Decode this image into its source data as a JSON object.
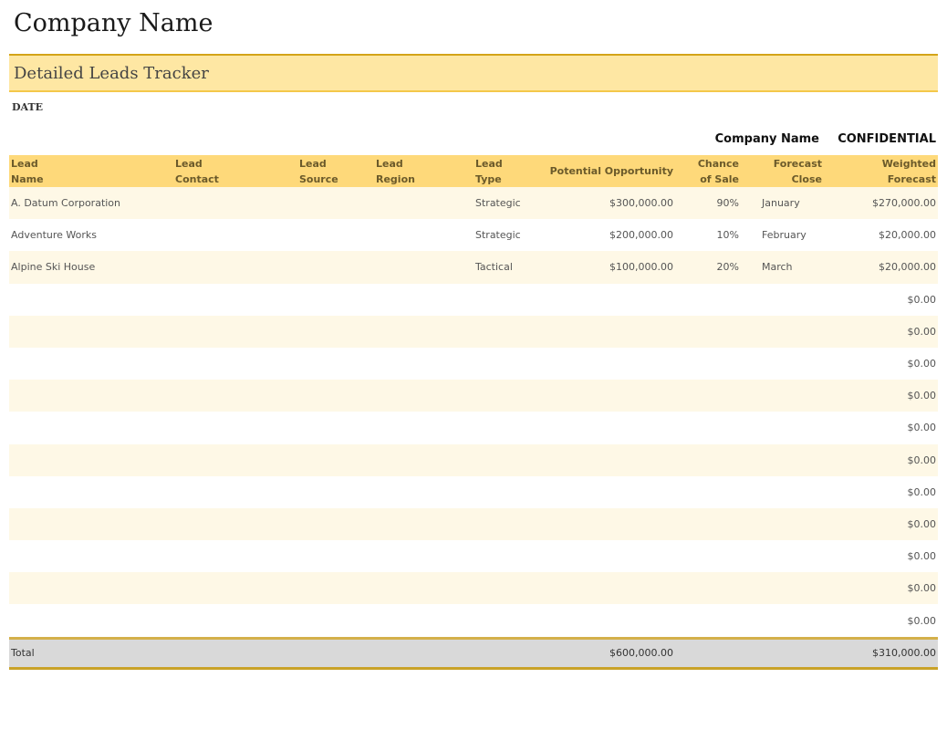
{
  "header": {
    "company": "Company Name",
    "title": "Detailed Leads Tracker",
    "date_label": "DATE",
    "company_right": "Company Name",
    "confidential": "CONFIDENTIAL"
  },
  "columns": [
    [
      "Lead",
      "Name"
    ],
    [
      "Lead",
      "Contact"
    ],
    [
      "Lead",
      "Source"
    ],
    [
      "Lead",
      "Region"
    ],
    [
      "Lead",
      "Type"
    ],
    [
      "Potential Opportunity"
    ],
    [
      "Chance",
      "of Sale"
    ],
    [
      "Forecast",
      "Close"
    ],
    [
      "Weighted",
      "Forecast"
    ]
  ],
  "rows": [
    {
      "name": "A. Datum Corporation",
      "contact": "",
      "source": "",
      "region": "",
      "type": "Strategic",
      "potential": "$300,000.00",
      "chance": "90%",
      "close": "January",
      "weighted": "$270,000.00"
    },
    {
      "name": "Adventure Works",
      "contact": "",
      "source": "",
      "region": "",
      "type": "Strategic",
      "potential": "$200,000.00",
      "chance": "10%",
      "close": "February",
      "weighted": "$20,000.00"
    },
    {
      "name": "Alpine Ski House",
      "contact": "",
      "source": "",
      "region": "",
      "type": "Tactical",
      "potential": "$100,000.00",
      "chance": "20%",
      "close": "March",
      "weighted": "$20,000.00"
    },
    {
      "weighted": "$0.00"
    },
    {
      "weighted": "$0.00"
    },
    {
      "weighted": "$0.00"
    },
    {
      "weighted": "$0.00"
    },
    {
      "weighted": "$0.00"
    },
    {
      "weighted": "$0.00"
    },
    {
      "weighted": "$0.00"
    },
    {
      "weighted": "$0.00"
    },
    {
      "weighted": "$0.00"
    },
    {
      "weighted": "$0.00"
    },
    {
      "weighted": "$0.00"
    }
  ],
  "total": {
    "label": "Total",
    "potential": "$600,000.00",
    "weighted": "$310,000.00"
  },
  "colors": {
    "accent": "#fed97a",
    "banner": "#fee7a3",
    "row_alt": "#fef8e6",
    "border": "#d4a418"
  }
}
